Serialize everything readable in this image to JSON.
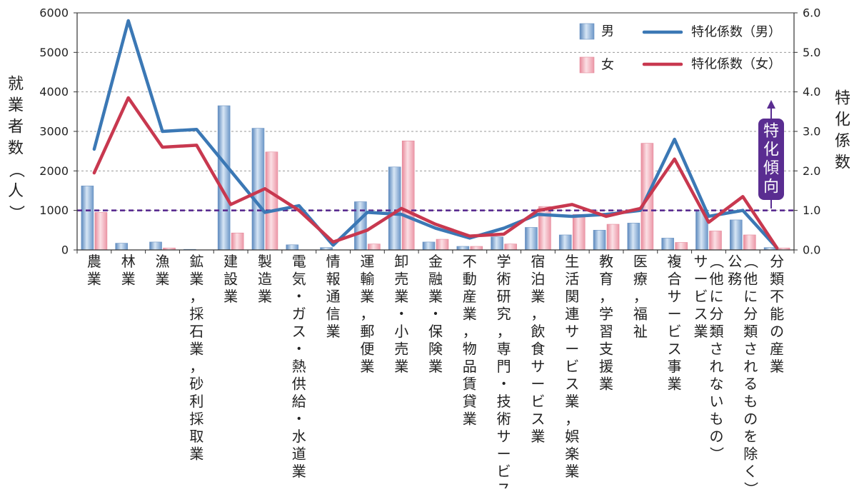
{
  "chart_data": {
    "type": "bar",
    "categories": [
      "農業",
      "林業",
      "漁業",
      "鉱業，採石業，砂利採取業",
      "建設業",
      "製造業",
      "電気・ガス・熱供給・水道業",
      "情報通信業",
      "運輸業，郵便業",
      "卸売業・小売業",
      "金融業・保険業",
      "不動産業，物品賃貸業",
      "学術研究，専門・技術サービス業",
      "宿泊業，飲食サービス業",
      "生活関連サービス業，娯楽業",
      "教育，学習支援業",
      "医療，福祉",
      "複合サービス事業",
      "サービス業（他に分類されないもの）",
      "公務（他に分類されるものを除く）",
      "分類不能の産業"
    ],
    "category_labels": [
      [
        "農業"
      ],
      [
        "林業"
      ],
      [
        "漁業"
      ],
      [
        "鉱業，採石業，砂利採取業"
      ],
      [
        "建設業"
      ],
      [
        "製造業"
      ],
      [
        "電気・ガス・熱供給・水道業"
      ],
      [
        "情報通信業"
      ],
      [
        "運輸業，郵便業"
      ],
      [
        "卸売業・小売業"
      ],
      [
        "金融業・保険業"
      ],
      [
        "不動産業，物品賃貸業"
      ],
      [
        "学術研究，専門・技術サービス業"
      ],
      [
        "宿泊業，飲食サービス業"
      ],
      [
        "生活関連サービス業，娯楽業"
      ],
      [
        "教育，学習支援業"
      ],
      [
        "医療，福祉"
      ],
      [
        "複合サービス事業"
      ],
      [
        "サービス業",
        "（他に分類されないもの）"
      ],
      [
        "公務",
        "（他に分類されるものを除く）"
      ],
      [
        "分類不能の産業"
      ]
    ],
    "series": [
      {
        "name": "男",
        "type": "bar",
        "axis": "left",
        "color": "#7fa6cf",
        "values": [
          1620,
          170,
          200,
          15,
          3650,
          3080,
          130,
          60,
          1220,
          2100,
          200,
          90,
          330,
          570,
          380,
          500,
          680,
          300,
          1000,
          760,
          60
        ]
      },
      {
        "name": "女",
        "type": "bar",
        "axis": "left",
        "color": "#f0a9b5",
        "values": [
          950,
          0,
          50,
          0,
          430,
          2480,
          0,
          0,
          150,
          2760,
          270,
          90,
          150,
          1100,
          900,
          650,
          2700,
          190,
          480,
          380,
          50
        ]
      },
      {
        "name": "特化係数（男）",
        "type": "line",
        "axis": "right",
        "color": "#3b78b5",
        "values": [
          2.55,
          5.8,
          3.0,
          3.05,
          2.0,
          0.95,
          1.12,
          0.12,
          0.95,
          0.9,
          0.55,
          0.3,
          0.55,
          0.9,
          0.85,
          0.9,
          1.0,
          2.8,
          0.85,
          1.0,
          0.05
        ]
      },
      {
        "name": "特化係数（女）",
        "type": "line",
        "axis": "right",
        "color": "#c8384f",
        "values": [
          1.95,
          3.85,
          2.6,
          2.65,
          1.15,
          1.55,
          1.0,
          0.2,
          0.5,
          1.05,
          0.65,
          0.35,
          0.4,
          1.0,
          1.15,
          0.85,
          1.05,
          2.3,
          0.7,
          1.35,
          0.05
        ]
      }
    ],
    "y_left": {
      "label": "就業者数（人）",
      "ylim": [
        0,
        6000
      ],
      "ticks": [
        0,
        1000,
        2000,
        3000,
        4000,
        5000,
        6000
      ]
    },
    "y_right": {
      "label": "特化係数",
      "ylim": [
        0,
        6
      ],
      "ticks": [
        "0.0",
        "1.0",
        "2.0",
        "3.0",
        "4.0",
        "5.0",
        "6.0"
      ]
    },
    "reference_line": {
      "value": 1.0,
      "color": "#5a2d91"
    },
    "annotation": {
      "text": "特化傾向",
      "color": "#5a2d91"
    },
    "grid": "horizontal dashed",
    "legend_placement": "top-right"
  }
}
